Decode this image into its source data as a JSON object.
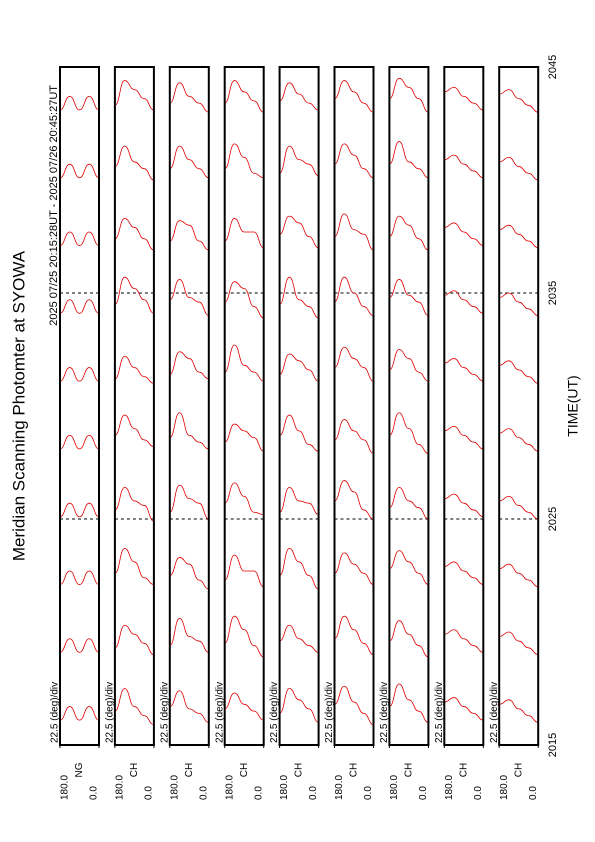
{
  "title": "Meridian Scanning Photomter at SYOWA",
  "subtitle": "2025 07/25 20:15:28UT - 2025 07/26 20:45:27UT",
  "time_axis": {
    "label": "TIME(UT)",
    "xlim": [
      2015,
      2045
    ],
    "xticks": [
      2015,
      2025,
      2035,
      2045
    ]
  },
  "chart_data": [
    {
      "type": "line",
      "channel": "NG",
      "scale_label": "22.5 (deg)/div",
      "color": "#e00000",
      "ylim": [
        0,
        180
      ],
      "yticks": [
        {
          "value": 180,
          "label": "180.0"
        },
        {
          "value": 0,
          "label": "0.0"
        }
      ],
      "angles": [
        0,
        45,
        90,
        135,
        180
      ],
      "x": [
        2015.5,
        2018.5,
        2021.5,
        2024.5,
        2027.5,
        2030.5,
        2033.5,
        2036.5,
        2039.5,
        2042.5
      ],
      "values": [
        [
          0.6,
          1.2,
          0.6,
          1.2,
          0.6
        ],
        [
          0.6,
          1.2,
          0.6,
          1.2,
          0.6
        ],
        [
          0.6,
          1.2,
          0.6,
          1.2,
          0.6
        ],
        [
          0.6,
          1.2,
          0.6,
          1.2,
          0.6
        ],
        [
          0.6,
          1.2,
          0.6,
          1.2,
          0.6
        ],
        [
          0.6,
          1.2,
          0.6,
          1.2,
          0.6
        ],
        [
          0.6,
          1.2,
          0.6,
          1.2,
          0.6
        ],
        [
          0.6,
          1.2,
          0.6,
          1.2,
          0.6
        ],
        [
          0.6,
          1.2,
          0.6,
          1.2,
          0.6
        ],
        [
          0.6,
          1.2,
          0.6,
          1.2,
          0.6
        ]
      ]
    },
    {
      "type": "line",
      "channel": "CH",
      "scale_label": "22.5 (deg)/div",
      "color": "#e00000",
      "ylim": [
        0,
        180
      ],
      "yticks": [
        {
          "value": 180,
          "label": "180.0"
        },
        {
          "value": 0,
          "label": "0.0"
        }
      ],
      "angles": [
        0,
        45,
        90,
        135,
        180
      ],
      "x": [
        2015.5,
        2018.5,
        2021.5,
        2024.5,
        2027.5,
        2030.5,
        2033.5,
        2036.5,
        2039.5,
        2042.5
      ],
      "values": [
        [
          0.4,
          0.8,
          1.2,
          2.0,
          1.0
        ],
        [
          0.5,
          1.0,
          1.4,
          1.8,
          0.8
        ],
        [
          0.6,
          0.9,
          1.6,
          2.2,
          1.1
        ],
        [
          0.4,
          1.1,
          1.3,
          1.9,
          0.9
        ],
        [
          0.7,
          1.0,
          1.5,
          2.1,
          1.2
        ],
        [
          0.5,
          0.8,
          1.2,
          1.7,
          0.7
        ],
        [
          0.6,
          1.2,
          1.7,
          2.2,
          1.0
        ],
        [
          0.4,
          0.9,
          1.4,
          1.8,
          0.9
        ],
        [
          0.5,
          1.0,
          1.3,
          2.0,
          1.1
        ],
        [
          0.6,
          1.1,
          1.5,
          1.9,
          0.8
        ]
      ]
    },
    {
      "type": "line",
      "channel": "CH",
      "scale_label": "22.5 (deg)/div",
      "color": "#e00000",
      "ylim": [
        0,
        180
      ],
      "yticks": [
        {
          "value": 180,
          "label": "180.0"
        },
        {
          "value": 0,
          "label": "0.0"
        }
      ],
      "angles": [
        0,
        45,
        90,
        135,
        180
      ],
      "x": [
        2015.5,
        2018.5,
        2021.5,
        2024.5,
        2027.5,
        2030.5,
        2033.5,
        2036.5,
        2039.5,
        2042.5
      ],
      "values": [
        [
          0.5,
          0.9,
          1.1,
          1.9,
          1.2
        ],
        [
          0.6,
          1.1,
          1.3,
          2.1,
          0.9
        ],
        [
          0.4,
          0.8,
          1.5,
          1.8,
          1.0
        ],
        [
          0.5,
          1.2,
          1.4,
          2.0,
          0.8
        ],
        [
          0.6,
          0.9,
          1.2,
          2.2,
          1.1
        ],
        [
          0.7,
          1.0,
          1.6,
          1.9,
          0.9
        ],
        [
          0.5,
          1.1,
          1.3,
          2.1,
          1.2
        ],
        [
          0.4,
          0.8,
          1.5,
          1.7,
          0.8
        ],
        [
          0.6,
          1.0,
          1.4,
          2.0,
          1.0
        ],
        [
          0.5,
          0.9,
          1.2,
          1.8,
          0.9
        ]
      ]
    },
    {
      "type": "line",
      "channel": "CH",
      "scale_label": "22.5 (deg)/div",
      "color": "#e00000",
      "ylim": [
        0,
        180
      ],
      "yticks": [
        {
          "value": 180,
          "label": "180.0"
        },
        {
          "value": 0,
          "label": "0.0"
        }
      ],
      "angles": [
        0,
        45,
        90,
        135,
        180
      ],
      "x": [
        2015.5,
        2018.5,
        2021.5,
        2024.5,
        2027.5,
        2030.5,
        2033.5,
        2036.5,
        2039.5,
        2042.5
      ],
      "values": [
        [
          0.6,
          1.0,
          1.3,
          1.8,
          1.1
        ],
        [
          0.4,
          0.9,
          1.6,
          2.2,
          1.0
        ],
        [
          0.5,
          1.2,
          1.2,
          1.9,
          0.8
        ],
        [
          0.7,
          0.8,
          1.5,
          2.1,
          1.2
        ],
        [
          0.5,
          1.1,
          1.4,
          1.7,
          0.9
        ],
        [
          0.6,
          1.0,
          1.3,
          2.2,
          1.0
        ],
        [
          0.4,
          0.9,
          1.7,
          2.0,
          1.1
        ],
        [
          0.5,
          1.2,
          1.2,
          1.8,
          0.8
        ],
        [
          0.6,
          0.8,
          1.5,
          2.1,
          1.0
        ],
        [
          0.5,
          1.0,
          1.4,
          1.9,
          0.9
        ]
      ]
    },
    {
      "type": "line",
      "channel": "CH",
      "scale_label": "22.5 (deg)/div",
      "color": "#e00000",
      "ylim": [
        0,
        180
      ],
      "yticks": [
        {
          "value": 180,
          "label": "180.0"
        },
        {
          "value": 0,
          "label": "0.0"
        }
      ],
      "angles": [
        0,
        45,
        90,
        135,
        180
      ],
      "x": [
        2015.5,
        2018.5,
        2021.5,
        2024.5,
        2027.5,
        2030.5,
        2033.5,
        2036.5,
        2039.5,
        2042.5
      ],
      "values": [
        [
          0.5,
          1.1,
          1.5,
          2.0,
          0.9
        ],
        [
          0.6,
          0.9,
          1.2,
          1.8,
          1.1
        ],
        [
          0.4,
          1.0,
          1.6,
          2.2,
          1.0
        ],
        [
          0.7,
          1.2,
          1.3,
          1.9,
          0.8
        ],
        [
          0.5,
          0.8,
          1.4,
          2.1,
          1.2
        ],
        [
          0.6,
          1.1,
          1.5,
          1.8,
          0.9
        ],
        [
          0.4,
          0.9,
          1.2,
          2.2,
          1.0
        ],
        [
          0.5,
          1.0,
          1.6,
          1.9,
          1.1
        ],
        [
          0.7,
          1.2,
          1.4,
          2.0,
          0.8
        ],
        [
          0.6,
          0.9,
          1.3,
          1.8,
          1.0
        ]
      ]
    },
    {
      "type": "line",
      "channel": "CH",
      "scale_label": "22.5 (deg)/div",
      "color": "#e00000",
      "ylim": [
        0,
        180
      ],
      "yticks": [
        {
          "value": 180,
          "label": "180.0"
        },
        {
          "value": 0,
          "label": "0.0"
        }
      ],
      "angles": [
        0,
        45,
        90,
        135,
        180
      ],
      "x": [
        2015.5,
        2018.5,
        2021.5,
        2024.5,
        2027.5,
        2030.5,
        2033.5,
        2036.5,
        2039.5,
        2042.5
      ],
      "values": [
        [
          0.4,
          0.9,
          1.4,
          2.1,
          1.3
        ],
        [
          0.5,
          1.0,
          1.6,
          2.2,
          1.2
        ],
        [
          0.6,
          1.1,
          1.5,
          2.0,
          1.1
        ],
        [
          0.5,
          0.9,
          1.7,
          2.2,
          1.3
        ],
        [
          0.4,
          1.0,
          1.4,
          1.9,
          1.0
        ],
        [
          0.6,
          1.2,
          1.6,
          2.1,
          1.2
        ],
        [
          0.5,
          0.9,
          1.5,
          2.2,
          1.1
        ],
        [
          0.4,
          1.1,
          1.3,
          2.0,
          1.0
        ],
        [
          0.6,
          1.0,
          1.6,
          2.1,
          1.2
        ],
        [
          0.5,
          0.9,
          1.4,
          1.9,
          1.1
        ]
      ]
    },
    {
      "type": "line",
      "channel": "CH",
      "scale_label": "22.5 (deg)/div",
      "color": "#e00000",
      "ylim": [
        0,
        180
      ],
      "yticks": [
        {
          "value": 180,
          "label": "180.0"
        },
        {
          "value": 0,
          "label": "0.0"
        }
      ],
      "angles": [
        0,
        45,
        90,
        135,
        180
      ],
      "x": [
        2015.5,
        2018.5,
        2021.5,
        2024.5,
        2027.5,
        2030.5,
        2033.5,
        2036.5,
        2039.5,
        2042.5
      ],
      "values": [
        [
          0.5,
          1.0,
          1.5,
          2.2,
          1.2
        ],
        [
          0.4,
          0.9,
          1.4,
          2.0,
          1.1
        ],
        [
          0.6,
          1.1,
          1.6,
          2.1,
          1.3
        ],
        [
          0.5,
          1.0,
          1.3,
          1.9,
          1.0
        ],
        [
          0.4,
          0.8,
          1.5,
          2.2,
          1.2
        ],
        [
          0.6,
          1.0,
          1.6,
          2.0,
          1.1
        ],
        [
          0.5,
          1.1,
          1.4,
          2.1,
          1.3
        ],
        [
          0.4,
          0.9,
          1.5,
          1.9,
          1.0
        ],
        [
          0.6,
          1.0,
          1.3,
          2.2,
          1.2
        ],
        [
          0.5,
          1.1,
          1.6,
          2.0,
          1.1
        ]
      ]
    },
    {
      "type": "line",
      "channel": "CH",
      "scale_label": "22.5 (deg)/div",
      "color": "#e00000",
      "ylim": [
        0,
        180
      ],
      "yticks": [
        {
          "value": 180,
          "label": "180.0"
        },
        {
          "value": 0,
          "label": "0.0"
        }
      ],
      "angles": [
        0,
        45,
        90,
        135,
        180
      ],
      "x": [
        2015.5,
        2018.5,
        2021.5,
        2024.5,
        2027.5,
        2030.5,
        2033.5,
        2036.5,
        2039.5,
        2042.5
      ],
      "values": [
        [
          0.6,
          0.9,
          1.2,
          1.6,
          1.4
        ],
        [
          0.6,
          0.9,
          1.2,
          1.6,
          1.4
        ],
        [
          0.6,
          0.9,
          1.2,
          1.6,
          1.4
        ],
        [
          0.6,
          0.9,
          1.2,
          1.6,
          1.4
        ],
        [
          0.6,
          0.9,
          1.2,
          1.6,
          1.4
        ],
        [
          0.6,
          0.9,
          1.2,
          1.6,
          1.4
        ],
        [
          0.6,
          0.9,
          1.2,
          1.6,
          1.4
        ],
        [
          0.6,
          0.9,
          1.2,
          1.6,
          1.4
        ],
        [
          0.6,
          0.9,
          1.2,
          1.6,
          1.4
        ],
        [
          0.6,
          0.9,
          1.2,
          1.6,
          1.4
        ]
      ]
    },
    {
      "type": "line",
      "channel": "CH",
      "scale_label": "22.5 (deg)/div",
      "color": "#e00000",
      "ylim": [
        0,
        180
      ],
      "yticks": [
        {
          "value": 180,
          "label": "180.0"
        },
        {
          "value": 0,
          "label": "0.0"
        }
      ],
      "angles": [
        0,
        45,
        90,
        135,
        180
      ],
      "x": [
        2015.5,
        2018.5,
        2021.5,
        2024.5,
        2027.5,
        2030.5,
        2033.5,
        2036.5,
        2039.5,
        2042.5
      ],
      "values": [
        [
          0.5,
          0.8,
          1.1,
          1.5,
          1.3
        ],
        [
          0.5,
          0.8,
          1.1,
          1.5,
          1.3
        ],
        [
          0.5,
          0.8,
          1.1,
          1.5,
          1.3
        ],
        [
          0.5,
          0.8,
          1.1,
          1.5,
          1.3
        ],
        [
          0.5,
          0.8,
          1.1,
          1.5,
          1.3
        ],
        [
          0.5,
          0.8,
          1.1,
          1.5,
          1.3
        ],
        [
          0.5,
          0.8,
          1.1,
          1.5,
          1.3
        ],
        [
          0.5,
          0.8,
          1.1,
          1.5,
          1.3
        ],
        [
          0.5,
          0.8,
          1.1,
          1.5,
          1.3
        ],
        [
          0.5,
          0.8,
          1.1,
          1.5,
          1.3
        ]
      ]
    }
  ]
}
